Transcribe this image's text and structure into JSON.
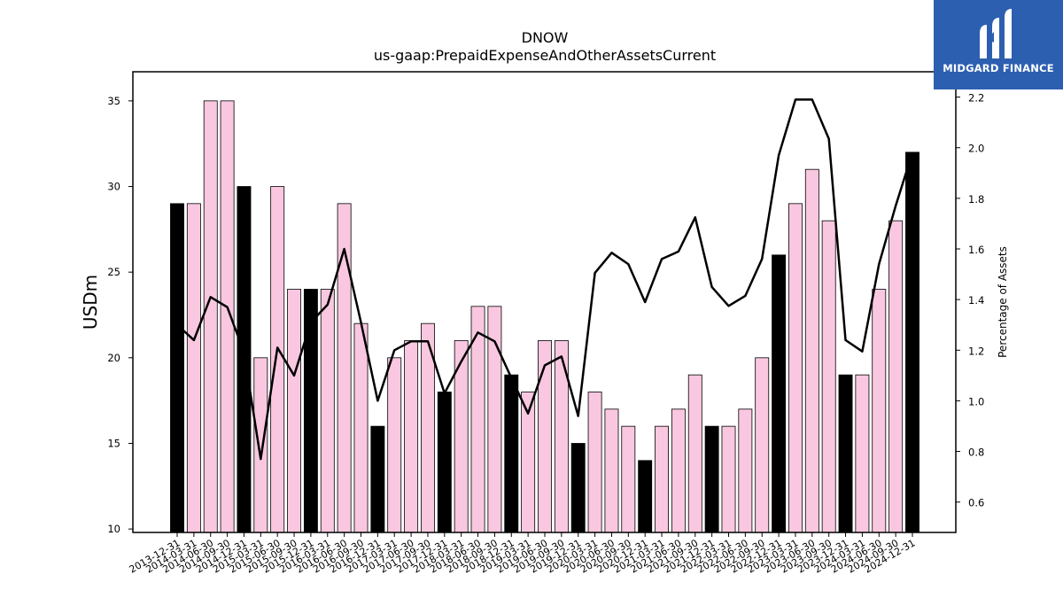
{
  "chart_data": {
    "type": "bar",
    "title": "DNOW",
    "subtitle": "us-gaap:PrepaidExpenseAndOtherAssetsCurrent",
    "ylabel": "USDm",
    "y2label": "Percentage of Assets",
    "ylim": [
      9.8,
      36.7
    ],
    "y2lim": [
      0.48,
      2.3
    ],
    "yticks": [
      10,
      15,
      20,
      25,
      30,
      35
    ],
    "y2ticks": [
      0.6,
      0.8,
      1.0,
      1.2,
      1.4,
      1.6,
      1.8,
      2.0,
      2.2
    ],
    "categories": [
      "2013-12-31",
      "2014-03-31",
      "2014-06-30",
      "2014-09-30",
      "2014-12-31",
      "2015-03-31",
      "2015-06-30",
      "2015-09-30",
      "2015-12-31",
      "2016-03-31",
      "2016-06-30",
      "2016-09-30",
      "2016-12-31",
      "2017-03-31",
      "2017-06-30",
      "2017-09-30",
      "2017-12-31",
      "2018-03-31",
      "2018-06-30",
      "2018-09-30",
      "2018-12-31",
      "2019-03-31",
      "2019-06-30",
      "2019-09-30",
      "2019-12-31",
      "2020-03-31",
      "2020-06-30",
      "2020-09-30",
      "2020-12-31",
      "2021-03-31",
      "2021-06-30",
      "2021-09-30",
      "2021-12-31",
      "2022-03-31",
      "2022-06-30",
      "2022-09-30",
      "2022-12-31",
      "2023-03-31",
      "2023-06-30",
      "2023-09-30",
      "2023-12-31",
      "2024-03-31",
      "2024-06-30",
      "2024-09-30",
      "2024-12-31"
    ],
    "series": [
      {
        "values": [
          29,
          29,
          35,
          35,
          30,
          20,
          30,
          24,
          24,
          24,
          29,
          22,
          16,
          20,
          21,
          22,
          18,
          21,
          23,
          23,
          19,
          18,
          21,
          21,
          15,
          18,
          17,
          16,
          14,
          16,
          17,
          19,
          16,
          16,
          17,
          20,
          26,
          29,
          31,
          28,
          19,
          19,
          24,
          28,
          32
        ],
        "year_end_color": "#000000",
        "quarter_color": "#f9c8e0"
      },
      {
        "values": [
          1.3,
          1.24,
          1.41,
          1.37,
          1.19,
          0.77,
          1.21,
          1.1,
          1.31,
          1.38,
          1.6,
          1.31,
          1.0,
          1.2,
          1.235,
          1.235,
          1.03,
          1.155,
          1.27,
          1.235,
          1.09,
          0.95,
          1.14,
          1.175,
          0.94,
          1.505,
          1.585,
          1.54,
          1.39,
          1.56,
          1.59,
          1.725,
          1.45,
          1.375,
          1.415,
          1.56,
          1.97,
          2.19,
          2.19,
          2.035,
          1.24,
          1.195,
          1.54,
          1.77,
          1.98
        ],
        "color": "#000000"
      }
    ]
  },
  "logo": {
    "text": "MIDGARD FINANCE",
    "background": "#2d5fb0"
  }
}
